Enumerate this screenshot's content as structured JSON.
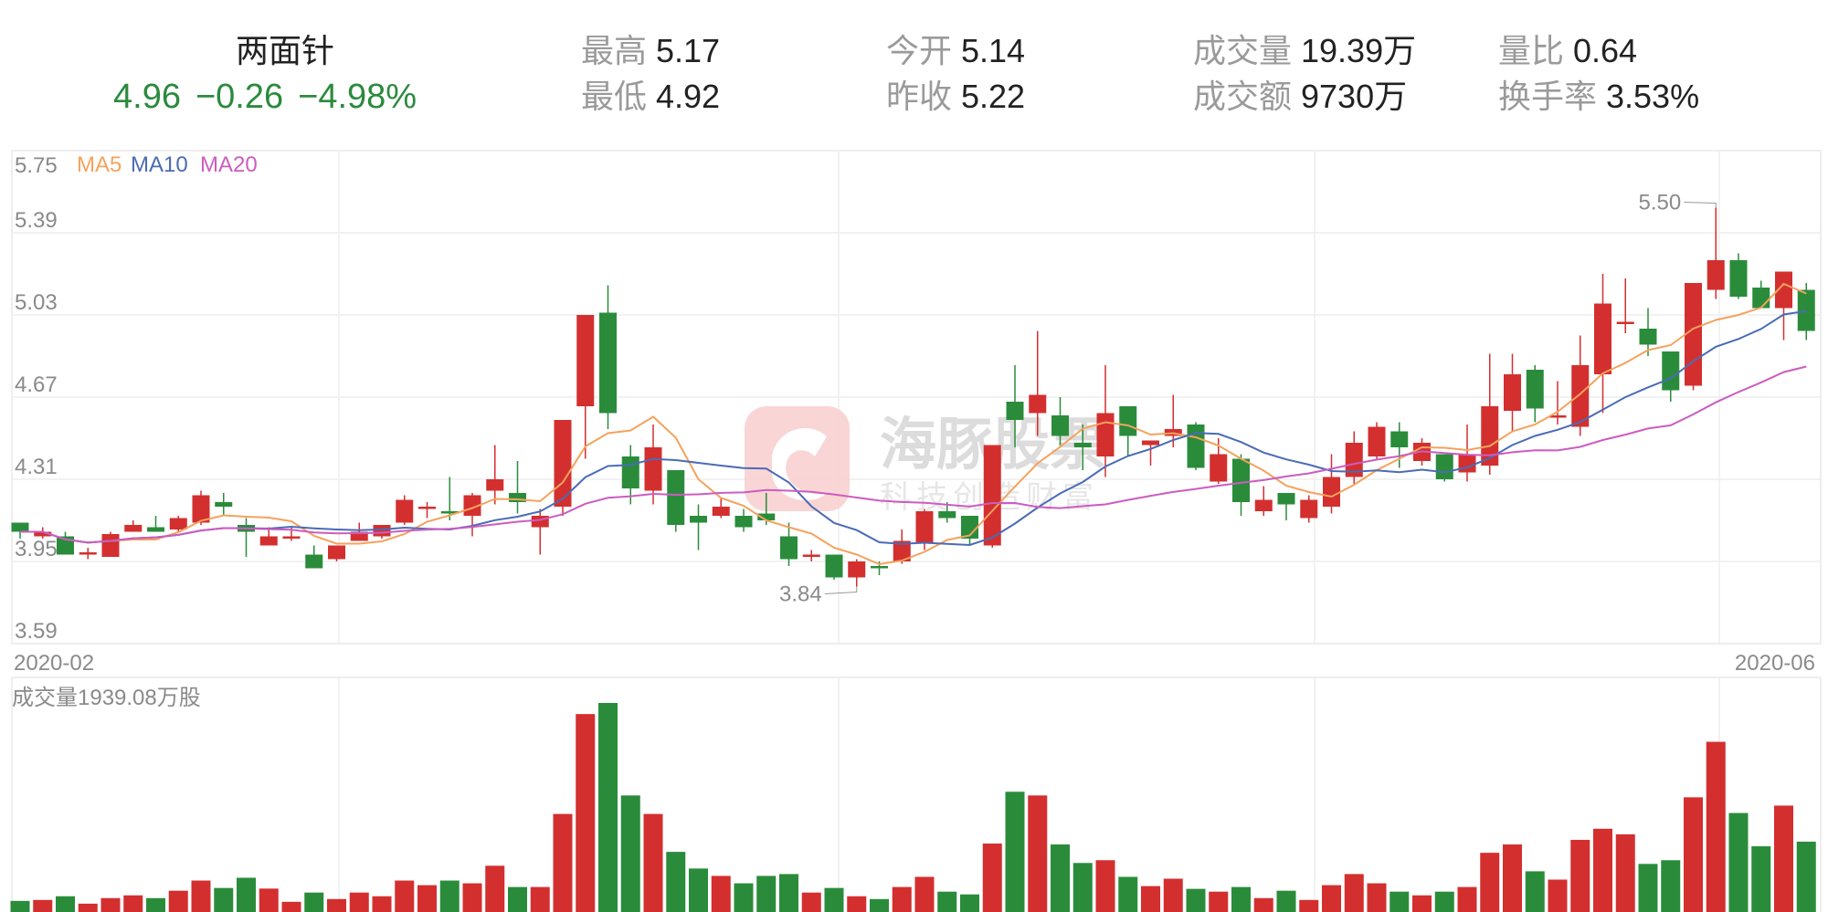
{
  "header": {
    "name": "两面针",
    "price": "4.96",
    "change": "−0.26",
    "change_pct": "−4.98%",
    "stats": [
      {
        "label": "最高",
        "value": "5.17"
      },
      {
        "label": "最低",
        "value": "4.92"
      },
      {
        "label": "今开",
        "value": "5.14"
      },
      {
        "label": "昨收",
        "value": "5.22"
      },
      {
        "label": "成交量",
        "value": "19.39万"
      },
      {
        "label": "成交额",
        "value": "9730万"
      },
      {
        "label": "量比",
        "value": "0.64"
      },
      {
        "label": "换手率",
        "value": "3.53%"
      }
    ]
  },
  "watermark": {
    "brand": "海豚股票",
    "slogan": "科技创造财富"
  },
  "colors": {
    "up": "#d32f2f",
    "down": "#2a8c3b",
    "ma5": "#f5a25d",
    "ma10": "#4a6bb5",
    "ma20": "#cc5cc0",
    "grid": "#eeeeee",
    "quote": "#2b8a3e"
  },
  "chart_data": [
    {
      "type": "candlestick",
      "ylim": [
        3.59,
        5.75
      ],
      "yticks": [
        "5.75",
        "5.39",
        "5.03",
        "4.67",
        "4.31",
        "3.95",
        "3.59"
      ],
      "xtick_labels": [
        "2020-02",
        "2020-06"
      ],
      "grid": true,
      "legend": [
        "MA5",
        "MA10",
        "MA20"
      ],
      "legend_placement": "top-left",
      "annotations": {
        "high": "5.50",
        "low": "3.84"
      },
      "ohlc": [
        [
          4.12,
          4.12,
          4.05,
          4.08
        ],
        [
          4.06,
          4.1,
          4.05,
          4.08
        ],
        [
          4.06,
          4.08,
          3.98,
          3.98
        ],
        [
          3.98,
          4.01,
          3.96,
          3.99
        ],
        [
          3.97,
          4.08,
          3.97,
          4.07
        ],
        [
          4.08,
          4.13,
          4.08,
          4.11
        ],
        [
          4.1,
          4.15,
          4.08,
          4.08
        ],
        [
          4.09,
          4.15,
          4.08,
          4.14
        ],
        [
          4.12,
          4.26,
          4.11,
          4.24
        ],
        [
          4.21,
          4.25,
          4.15,
          4.19
        ],
        [
          4.11,
          4.14,
          3.97,
          4.08
        ],
        [
          4.02,
          4.1,
          4.02,
          4.06
        ],
        [
          4.05,
          4.1,
          4.04,
          4.06
        ],
        [
          3.98,
          4.02,
          3.92,
          3.92
        ],
        [
          3.96,
          4.02,
          3.95,
          4.02
        ],
        [
          4.04,
          4.12,
          4.04,
          4.08
        ],
        [
          4.06,
          4.11,
          4.05,
          4.11
        ],
        [
          4.12,
          4.24,
          4.11,
          4.22
        ],
        [
          4.18,
          4.21,
          4.14,
          4.19
        ],
        [
          4.17,
          4.32,
          4.13,
          4.16
        ],
        [
          4.15,
          4.25,
          4.06,
          4.24
        ],
        [
          4.26,
          4.46,
          4.2,
          4.31
        ],
        [
          4.25,
          4.39,
          4.16,
          4.21
        ],
        [
          4.1,
          4.18,
          3.98,
          4.15
        ],
        [
          4.19,
          4.57,
          4.15,
          4.57
        ],
        [
          4.63,
          5.03,
          4.4,
          5.03
        ],
        [
          5.04,
          5.16,
          4.53,
          4.6
        ],
        [
          4.41,
          4.46,
          4.2,
          4.27
        ],
        [
          4.26,
          4.55,
          4.2,
          4.45
        ],
        [
          4.35,
          4.35,
          4.08,
          4.11
        ],
        [
          4.15,
          4.2,
          4.0,
          4.12
        ],
        [
          4.15,
          4.23,
          4.14,
          4.19
        ],
        [
          4.15,
          4.18,
          4.08,
          4.1
        ],
        [
          4.16,
          4.25,
          4.11,
          4.13
        ],
        [
          4.06,
          4.12,
          3.93,
          3.96
        ],
        [
          3.98,
          4.0,
          3.95,
          3.98
        ],
        [
          3.98,
          3.98,
          3.87,
          3.88
        ],
        [
          3.88,
          3.96,
          3.84,
          3.95
        ],
        [
          3.93,
          3.95,
          3.89,
          3.92
        ],
        [
          3.95,
          4.09,
          3.94,
          4.04
        ],
        [
          4.03,
          4.18,
          4.0,
          4.17
        ],
        [
          4.17,
          4.21,
          4.12,
          4.14
        ],
        [
          4.15,
          4.15,
          4.02,
          4.05
        ],
        [
          4.02,
          4.46,
          4.01,
          4.46
        ],
        [
          4.65,
          4.81,
          4.45,
          4.57
        ],
        [
          4.6,
          4.96,
          4.5,
          4.68
        ],
        [
          4.59,
          4.67,
          4.46,
          4.5
        ],
        [
          4.47,
          4.55,
          4.35,
          4.45
        ],
        [
          4.41,
          4.81,
          4.32,
          4.6
        ],
        [
          4.63,
          4.63,
          4.41,
          4.5
        ],
        [
          4.46,
          4.48,
          4.37,
          4.48
        ],
        [
          4.5,
          4.68,
          4.45,
          4.53
        ],
        [
          4.55,
          4.56,
          4.35,
          4.36
        ],
        [
          4.3,
          4.49,
          4.29,
          4.42
        ],
        [
          4.4,
          4.42,
          4.15,
          4.21
        ],
        [
          4.17,
          4.28,
          4.15,
          4.22
        ],
        [
          4.25,
          4.25,
          4.13,
          4.2
        ],
        [
          4.14,
          4.24,
          4.12,
          4.22
        ],
        [
          4.19,
          4.42,
          4.16,
          4.32
        ],
        [
          4.32,
          4.52,
          4.29,
          4.47
        ],
        [
          4.41,
          4.56,
          4.4,
          4.54
        ],
        [
          4.52,
          4.56,
          4.36,
          4.45
        ],
        [
          4.39,
          4.49,
          4.37,
          4.47
        ],
        [
          4.42,
          4.42,
          4.3,
          4.31
        ],
        [
          4.34,
          4.55,
          4.3,
          4.42
        ],
        [
          4.37,
          4.86,
          4.33,
          4.63
        ],
        [
          4.61,
          4.86,
          4.52,
          4.77
        ],
        [
          4.79,
          4.81,
          4.56,
          4.62
        ],
        [
          4.58,
          4.74,
          4.55,
          4.59
        ],
        [
          4.54,
          4.94,
          4.5,
          4.81
        ],
        [
          4.77,
          5.21,
          4.6,
          5.08
        ],
        [
          4.99,
          5.19,
          4.95,
          5.0
        ],
        [
          4.97,
          5.06,
          4.85,
          4.9
        ],
        [
          4.87,
          4.87,
          4.65,
          4.7
        ],
        [
          4.72,
          5.17,
          4.7,
          5.17
        ],
        [
          5.14,
          5.5,
          5.1,
          5.27
        ],
        [
          5.27,
          5.3,
          5.1,
          5.11
        ],
        [
          5.15,
          5.18,
          5.06,
          5.06
        ],
        [
          5.06,
          5.22,
          4.92,
          5.22
        ],
        [
          5.14,
          5.17,
          4.92,
          4.96
        ]
      ]
    },
    {
      "type": "bar",
      "title": "成交量1939.08万股",
      "unit": "万股",
      "values": [
        306,
        332,
        434,
        230,
        383,
        459,
        383,
        587,
        867,
        663,
        944,
        646,
        281,
        536,
        357,
        536,
        434,
        867,
        740,
        867,
        791,
        1275,
        689,
        689,
        2703,
        5457,
        5763,
        3213,
        2703,
        1658,
        1199,
        995,
        791,
        995,
        1046,
        536,
        663,
        434,
        357,
        689,
        969,
        561,
        485,
        1887,
        3315,
        3213,
        1862,
        1352,
        1428,
        969,
        714,
        918,
        638,
        561,
        689,
        383,
        587,
        332,
        740,
        1046,
        791,
        561,
        459,
        561,
        689,
        1632,
        1862,
        1122,
        893,
        1989,
        2295,
        2142,
        1326,
        1428,
        3162,
        4692,
        2729,
        1811,
        2933,
        1939
      ]
    }
  ]
}
